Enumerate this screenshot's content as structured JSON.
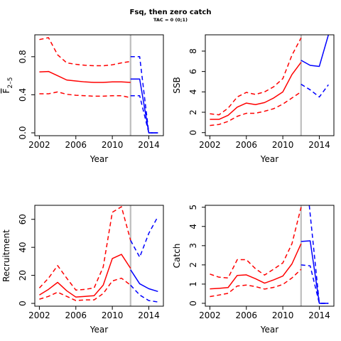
{
  "title": "Fsq, then zero catch",
  "subtitle": "TAC = 0 (0;1)",
  "colors": {
    "historic": "#ff0000",
    "projection": "#0000ff",
    "divider": "#bebebe",
    "axis": "#000000"
  },
  "chart_data": [
    {
      "type": "line",
      "xlabel": "Year",
      "ylabel": "F̄2–5",
      "ylabel_main": "F",
      "ylabel_sub": "2–5",
      "xlim": [
        2001.5,
        2015.6
      ],
      "ylim": [
        -0.03,
        1.03
      ],
      "xticks": [
        2002,
        2006,
        2010,
        2014
      ],
      "yticks": [
        0.0,
        0.4,
        0.8
      ],
      "ytick_labels": [
        "0.0",
        "0.4",
        "0.8"
      ],
      "divider_year": 2012,
      "series": [
        {
          "role": "historic",
          "style": "solid",
          "x": [
            2002,
            2003,
            2004,
            2005,
            2006,
            2007,
            2008,
            2009,
            2010,
            2011,
            2012
          ],
          "y": [
            0.64,
            0.645,
            0.6,
            0.555,
            0.545,
            0.535,
            0.53,
            0.53,
            0.535,
            0.535,
            0.53
          ]
        },
        {
          "role": "historic",
          "style": "dashed",
          "x": [
            2002,
            2003,
            2004,
            2005,
            2006,
            2007,
            2008,
            2009,
            2010,
            2011,
            2012
          ],
          "y": [
            0.98,
            1.0,
            0.82,
            0.735,
            0.72,
            0.71,
            0.705,
            0.705,
            0.715,
            0.735,
            0.75
          ]
        },
        {
          "role": "historic",
          "style": "dashed",
          "x": [
            2002,
            2003,
            2004,
            2005,
            2006,
            2007,
            2008,
            2009,
            2010,
            2011,
            2012
          ],
          "y": [
            0.41,
            0.41,
            0.43,
            0.405,
            0.395,
            0.39,
            0.385,
            0.385,
            0.39,
            0.39,
            0.37
          ]
        },
        {
          "role": "projection",
          "style": "solid",
          "x": [
            2012,
            2013,
            2014,
            2015
          ],
          "y": [
            0.565,
            0.565,
            0.0,
            0.0
          ]
        },
        {
          "role": "projection",
          "style": "dashed",
          "x": [
            2012,
            2013,
            2014,
            2015
          ],
          "y": [
            0.8,
            0.8,
            0.0,
            0.0
          ]
        },
        {
          "role": "projection",
          "style": "dashed",
          "x": [
            2012,
            2013,
            2014,
            2015
          ],
          "y": [
            0.39,
            0.39,
            0.0,
            0.0
          ]
        }
      ]
    },
    {
      "type": "line",
      "xlabel": "Year",
      "ylabel": "SSB",
      "xlim": [
        2001.5,
        2015.6
      ],
      "ylim": [
        -0.3,
        9.6
      ],
      "xticks": [
        2002,
        2006,
        2010,
        2014
      ],
      "yticks": [
        0,
        2,
        4,
        6,
        8
      ],
      "ytick_labels": [
        "0",
        "2",
        "4",
        "6",
        "8"
      ],
      "divider_year": 2012,
      "series": [
        {
          "role": "historic",
          "style": "solid",
          "x": [
            2002,
            2003,
            2004,
            2005,
            2006,
            2007,
            2008,
            2009,
            2010,
            2011,
            2012
          ],
          "y": [
            1.3,
            1.3,
            1.7,
            2.5,
            2.9,
            2.75,
            2.95,
            3.4,
            4.0,
            5.7,
            6.9
          ]
        },
        {
          "role": "historic",
          "style": "dashed",
          "x": [
            2002,
            2003,
            2004,
            2005,
            2006,
            2007,
            2008,
            2009,
            2010,
            2011,
            2012
          ],
          "y": [
            1.85,
            1.75,
            2.4,
            3.5,
            3.95,
            3.75,
            4.0,
            4.5,
            5.3,
            7.6,
            9.3
          ]
        },
        {
          "role": "historic",
          "style": "dashed",
          "x": [
            2002,
            2003,
            2004,
            2005,
            2006,
            2007,
            2008,
            2009,
            2010,
            2011,
            2012
          ],
          "y": [
            0.7,
            0.8,
            1.1,
            1.6,
            1.9,
            1.9,
            2.1,
            2.35,
            2.8,
            3.4,
            4.0
          ]
        },
        {
          "role": "projection",
          "style": "solid",
          "x": [
            2012,
            2013,
            2014,
            2015
          ],
          "y": [
            7.1,
            6.6,
            6.5,
            9.6
          ]
        },
        {
          "role": "projection",
          "style": "dashed",
          "x": [
            2012,
            2013,
            2014,
            2015
          ],
          "y": [
            4.75,
            4.2,
            3.5,
            4.7
          ]
        }
      ]
    },
    {
      "type": "line",
      "xlabel": "Year",
      "ylabel": "Recruitment",
      "xlim": [
        2001.5,
        2015.6
      ],
      "ylim": [
        -2,
        70
      ],
      "xticks": [
        2002,
        2006,
        2010,
        2014
      ],
      "yticks": [
        0,
        20,
        40,
        60
      ],
      "ytick_labels": [
        "0",
        "20",
        "40",
        "60"
      ],
      "divider_year": 2012,
      "series": [
        {
          "role": "historic",
          "style": "solid",
          "x": [
            2002,
            2003,
            2004,
            2005,
            2006,
            2007,
            2008,
            2009,
            2010,
            2011,
            2012
          ],
          "y": [
            6,
            10,
            15,
            9,
            4.5,
            5,
            5.5,
            13,
            32,
            35,
            25
          ]
        },
        {
          "role": "historic",
          "style": "dashed",
          "x": [
            2002,
            2003,
            2004,
            2005,
            2006,
            2007,
            2008,
            2009,
            2010,
            2011,
            2012
          ],
          "y": [
            11,
            18,
            27,
            18,
            9.5,
            10,
            11,
            26,
            65,
            69,
            45
          ]
        },
        {
          "role": "historic",
          "style": "dashed",
          "x": [
            2002,
            2003,
            2004,
            2005,
            2006,
            2007,
            2008,
            2009,
            2010,
            2011,
            2012
          ],
          "y": [
            3,
            5,
            8,
            5,
            2,
            2.5,
            2.5,
            7,
            16,
            18,
            13
          ]
        },
        {
          "role": "projection",
          "style": "solid",
          "x": [
            2012,
            2013,
            2014,
            2015
          ],
          "y": [
            24,
            14,
            10.5,
            8.5
          ]
        },
        {
          "role": "projection",
          "style": "dashed",
          "x": [
            2012,
            2013,
            2014,
            2015
          ],
          "y": [
            45,
            33,
            50,
            62
          ]
        },
        {
          "role": "projection",
          "style": "dashed",
          "x": [
            2012,
            2013,
            2014,
            2015
          ],
          "y": [
            13,
            6,
            2,
            1
          ]
        }
      ]
    },
    {
      "type": "line",
      "xlabel": "Year",
      "ylabel": "Catch",
      "xlim": [
        2001.5,
        2015.6
      ],
      "ylim": [
        -0.15,
        5.1
      ],
      "xticks": [
        2002,
        2006,
        2010,
        2014
      ],
      "yticks": [
        0,
        1,
        2,
        3,
        4,
        5
      ],
      "ytick_labels": [
        "0",
        "1",
        "2",
        "3",
        "4",
        "5"
      ],
      "divider_year": 2012,
      "series": [
        {
          "role": "historic",
          "style": "solid",
          "x": [
            2002,
            2003,
            2004,
            2005,
            2006,
            2007,
            2008,
            2009,
            2010,
            2011,
            2012
          ],
          "y": [
            0.75,
            0.78,
            0.82,
            1.45,
            1.48,
            1.28,
            1.05,
            1.22,
            1.42,
            2.05,
            3.1
          ]
        },
        {
          "role": "historic",
          "style": "dashed",
          "x": [
            2002,
            2003,
            2004,
            2005,
            2006,
            2007,
            2008,
            2009,
            2010,
            2011,
            2012
          ],
          "y": [
            1.52,
            1.36,
            1.32,
            2.27,
            2.27,
            1.8,
            1.47,
            1.78,
            2.1,
            3.1,
            5.0
          ]
        },
        {
          "role": "historic",
          "style": "dashed",
          "x": [
            2002,
            2003,
            2004,
            2005,
            2006,
            2007,
            2008,
            2009,
            2010,
            2011,
            2012
          ],
          "y": [
            0.35,
            0.43,
            0.52,
            0.9,
            0.95,
            0.87,
            0.74,
            0.83,
            0.98,
            1.32,
            1.77
          ]
        },
        {
          "role": "projection",
          "style": "solid",
          "x": [
            2012,
            2013,
            2014,
            2015
          ],
          "y": [
            3.22,
            3.25,
            0.0,
            0.0
          ]
        },
        {
          "role": "projection",
          "style": "dashed",
          "x": [
            2012.9,
            2014,
            2015
          ],
          "y": [
            5.1,
            0.0,
            0.0
          ]
        },
        {
          "role": "projection",
          "style": "dashed",
          "x": [
            2012,
            2013,
            2014,
            2015
          ],
          "y": [
            2.0,
            1.95,
            0.0,
            0.0
          ]
        }
      ]
    }
  ]
}
